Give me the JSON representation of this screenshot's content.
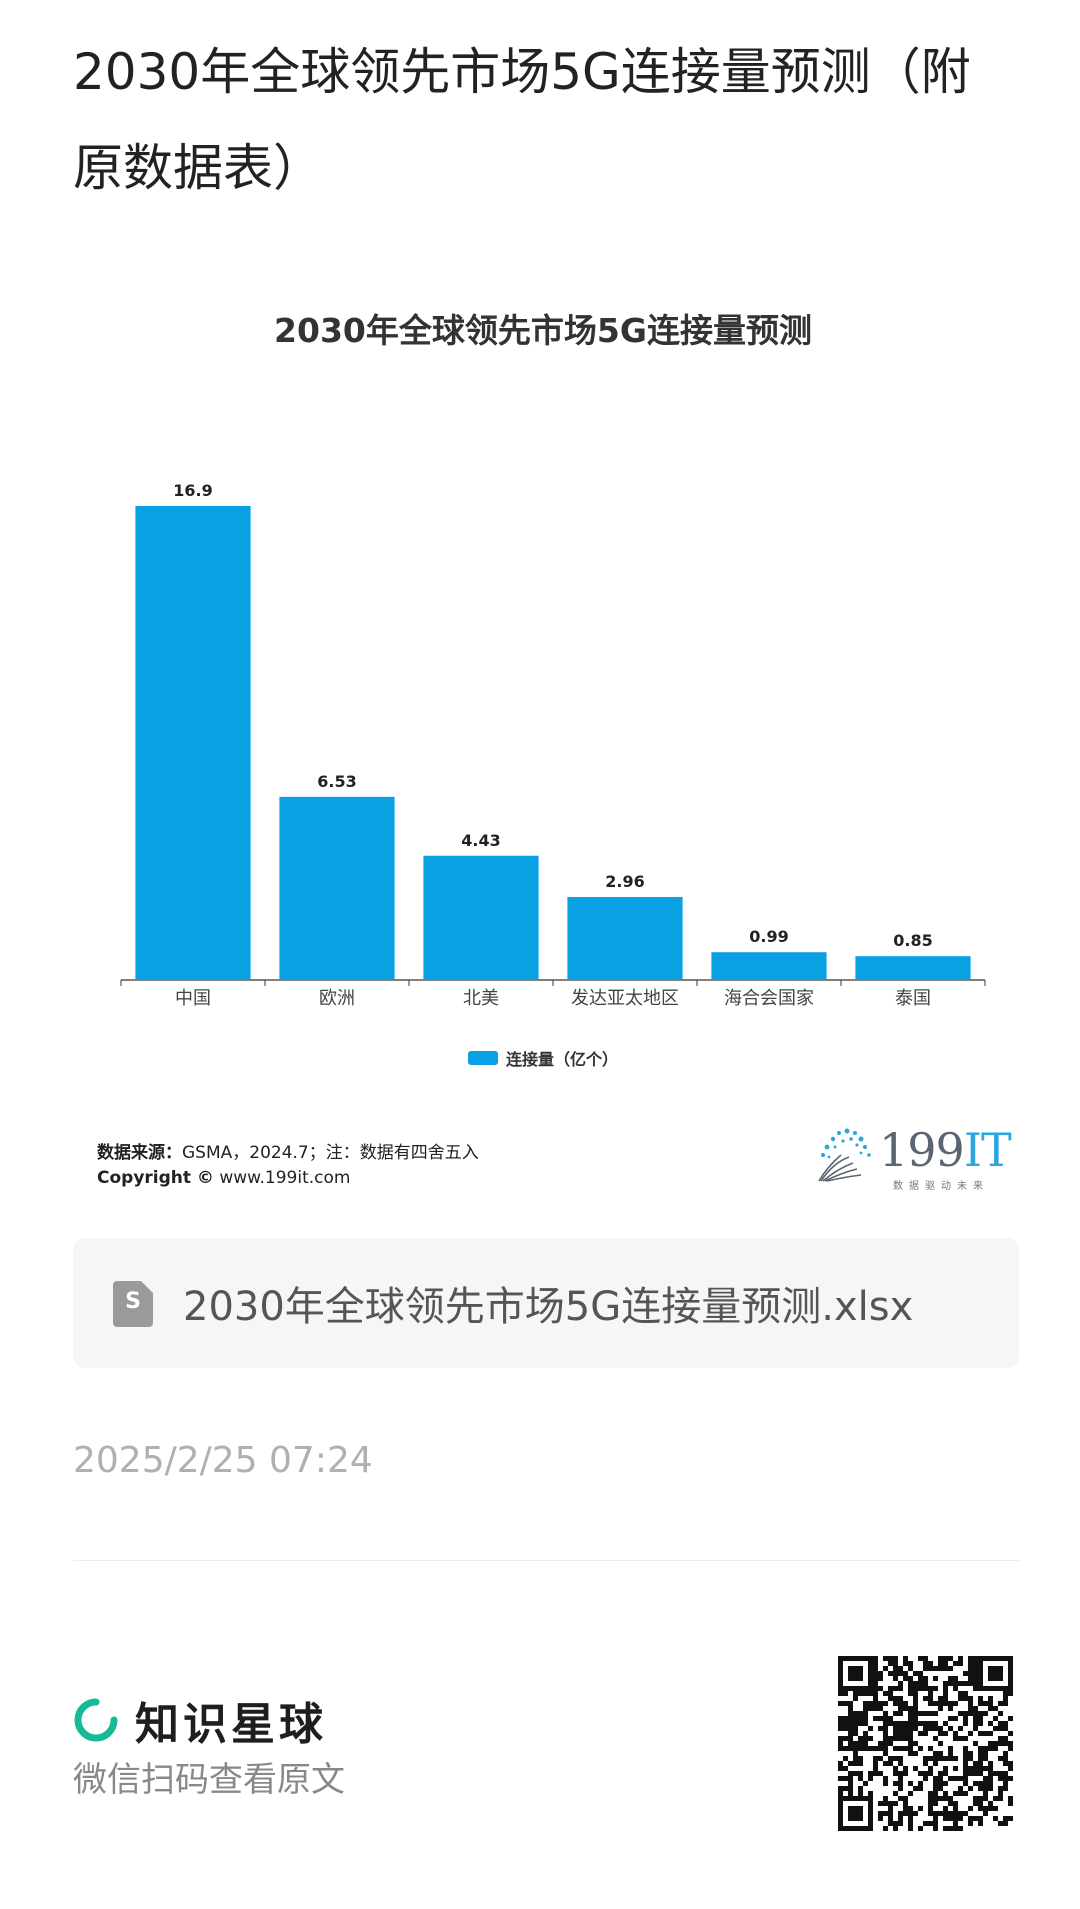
{
  "page_title": "2030年全球领先市场5G连接量预测（附原数据表）",
  "chart_data": {
    "type": "bar",
    "title": "2030年全球领先市场5G连接量预测",
    "categories": [
      "中国",
      "欧洲",
      "北美",
      "发达亚太地区",
      "海合会国家",
      "泰国"
    ],
    "series": [
      {
        "name": "连接量（亿个）",
        "values": [
          16.9,
          6.53,
          4.43,
          2.96,
          0.99,
          0.85
        ]
      }
    ],
    "value_labels": [
      "16.9",
      "6.53",
      "4.43",
      "2.96",
      "0.99",
      "0.85"
    ],
    "ylim": [
      0,
      16.9
    ],
    "grid": false,
    "legend_position": "bottom-center",
    "bar_color": "#0aa0e4"
  },
  "source": {
    "label": "数据来源：",
    "text": "GSMA，2024.7；注：数据有四舍五入"
  },
  "copyright": {
    "label": "Copyright ©",
    "url": "www.199it.com"
  },
  "logo": {
    "main": "199",
    "accent": "IT",
    "tagline": "数据驱动未来"
  },
  "file_card": {
    "icon": "file-s-icon",
    "icon_letter": "S",
    "file_name": "2030年全球领先市场5G连接量预测.xlsx"
  },
  "timestamp": "2025/2/25 07:24",
  "footer": {
    "brand_name": "知识星球",
    "scan_text": "微信扫码查看原文",
    "brand_color": "#16b998"
  }
}
